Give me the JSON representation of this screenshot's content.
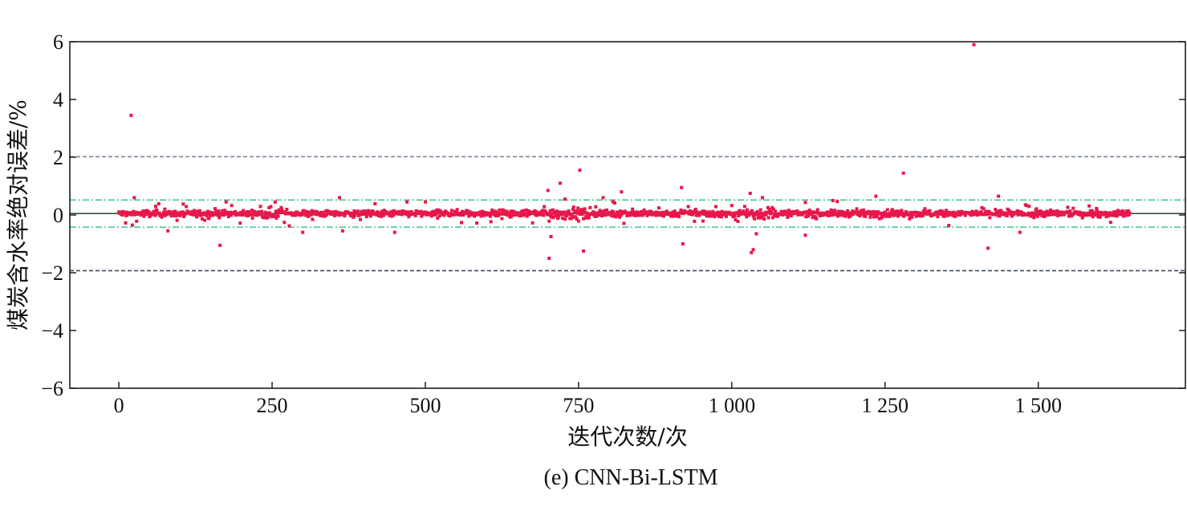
{
  "chart_data": {
    "type": "scatter",
    "caption": "(e) CNN-Bi-LSTM",
    "xlabel": "迭代次数/次",
    "ylabel": "煤炭含水率绝对误差/%",
    "xlim": [
      -80,
      1740
    ],
    "ylim": [
      -6,
      6
    ],
    "x_ticks": [
      0,
      250,
      500,
      750,
      1000,
      1250,
      1500
    ],
    "x_tick_labels": [
      "0",
      "250",
      "500",
      "750",
      "1 000",
      "1 250",
      "1 500"
    ],
    "y_ticks": [
      -6,
      -4,
      -2,
      0,
      2,
      4,
      6
    ],
    "y_tick_labels": [
      "−6",
      "−4",
      "−2",
      "0",
      "2",
      "4",
      "6"
    ],
    "grid": false,
    "n_points": 1650,
    "reference_lines": [
      {
        "y": 2.02,
        "color": "#7a8a99",
        "style": "dashed"
      },
      {
        "y": 0.52,
        "color": "#3cc88a",
        "style": "dash-dot"
      },
      {
        "y": 0.05,
        "color": "#2f4f4f",
        "style": "solid"
      },
      {
        "y": -0.42,
        "color": "#3cc88a",
        "style": "dash-dot"
      },
      {
        "y": -1.93,
        "color": "#3c4a5a",
        "style": "dashed"
      }
    ],
    "outliers": [
      {
        "x": 20,
        "y": 3.45
      },
      {
        "x": 25,
        "y": 0.6
      },
      {
        "x": 22,
        "y": -0.35
      },
      {
        "x": 60,
        "y": 0.3
      },
      {
        "x": 80,
        "y": -0.55
      },
      {
        "x": 165,
        "y": -1.05
      },
      {
        "x": 175,
        "y": 0.45
      },
      {
        "x": 255,
        "y": 0.45
      },
      {
        "x": 300,
        "y": -0.6
      },
      {
        "x": 360,
        "y": 0.6
      },
      {
        "x": 365,
        "y": -0.55
      },
      {
        "x": 450,
        "y": -0.6
      },
      {
        "x": 470,
        "y": 0.45
      },
      {
        "x": 700,
        "y": 0.85
      },
      {
        "x": 702,
        "y": -1.5
      },
      {
        "x": 705,
        "y": -0.75
      },
      {
        "x": 720,
        "y": 1.1
      },
      {
        "x": 728,
        "y": 0.55
      },
      {
        "x": 752,
        "y": 1.55
      },
      {
        "x": 758,
        "y": -1.25
      },
      {
        "x": 790,
        "y": 0.6
      },
      {
        "x": 820,
        "y": 0.8
      },
      {
        "x": 918,
        "y": 0.95
      },
      {
        "x": 920,
        "y": -1.0
      },
      {
        "x": 1030,
        "y": 0.75
      },
      {
        "x": 1032,
        "y": -1.3
      },
      {
        "x": 1035,
        "y": -1.2
      },
      {
        "x": 1050,
        "y": 0.6
      },
      {
        "x": 1040,
        "y": -0.65
      },
      {
        "x": 1120,
        "y": -0.7
      },
      {
        "x": 1165,
        "y": 0.5
      },
      {
        "x": 1235,
        "y": 0.65
      },
      {
        "x": 1280,
        "y": 1.45
      },
      {
        "x": 1395,
        "y": 5.9
      },
      {
        "x": 1418,
        "y": -1.15
      },
      {
        "x": 1435,
        "y": 0.65
      },
      {
        "x": 1470,
        "y": -0.6
      }
    ],
    "main_band_center": 0.05,
    "main_band_spread": 0.12,
    "colors": {
      "points": "#e8174a",
      "axis": "#111111"
    }
  }
}
